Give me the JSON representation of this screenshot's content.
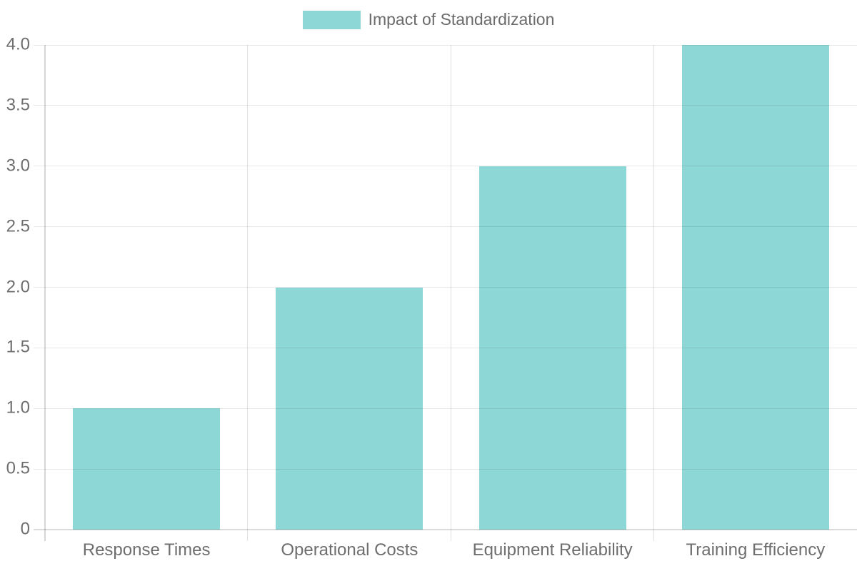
{
  "chart_data": {
    "type": "bar",
    "title": "",
    "xlabel": "",
    "ylabel": "",
    "legend": {
      "label": "Impact of Standardization",
      "position": "top-center"
    },
    "categories": [
      "Response Times",
      "Operational Costs",
      "Equipment Reliability",
      "Training Efficiency"
    ],
    "values": [
      1,
      2,
      3,
      4
    ],
    "ylim": [
      0,
      4
    ],
    "yticks": [
      {
        "value": 0,
        "label": "0"
      },
      {
        "value": 0.5,
        "label": "0.5"
      },
      {
        "value": 1,
        "label": "1.0"
      },
      {
        "value": 1.5,
        "label": "1.5"
      },
      {
        "value": 2,
        "label": "2.0"
      },
      {
        "value": 2.5,
        "label": "2.5"
      },
      {
        "value": 3,
        "label": "3.0"
      },
      {
        "value": 3.5,
        "label": "3.5"
      },
      {
        "value": 4,
        "label": "4.0"
      }
    ],
    "grid": true,
    "bar_color": "#8ed7d7",
    "grid_color": "#e6e6e6",
    "axis_color": "#d6d6d6",
    "text_color": "#6e6e6e"
  }
}
